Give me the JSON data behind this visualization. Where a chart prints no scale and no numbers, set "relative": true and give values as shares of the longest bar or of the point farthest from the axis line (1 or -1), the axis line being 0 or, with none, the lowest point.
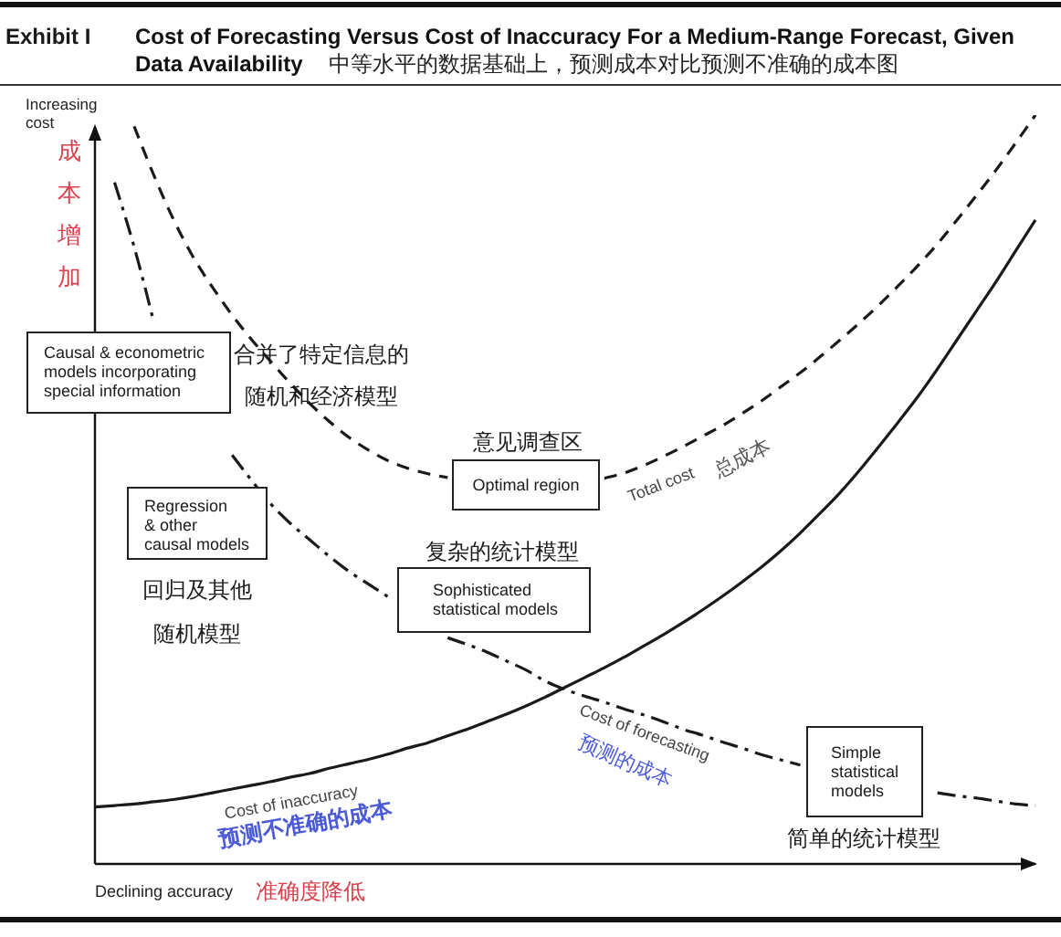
{
  "chart_data": {
    "type": "line",
    "title": "Cost of Forecasting Versus Cost of Inaccuracy For a Medium-Range Forecast, Given Data Availability",
    "subtitle": "中等水平的数据基础上，预测成本对比预测不准确的成本图",
    "xlabel": "Declining accuracy",
    "ylabel": "Increasing\ncost",
    "annotations": [
      "Exhibit I",
      "成本增加",
      "准确度降低",
      "Causal & econometric\nmodels incorporating\nspecial information",
      "合并了特定信息的",
      "随机和经济模型",
      "Regression\n& other\ncausal models",
      "回归及其他",
      "随机模型",
      "意见调查区",
      "Optimal region",
      "总成本",
      "复杂的统计模型",
      "Sophisticated\nstatistical models",
      "预测的成本",
      "Simple\nstatistical\nmodels",
      "简单的统计模型",
      "预测不准确的成本"
    ],
    "categories": [
      null,
      null,
      null,
      null,
      null,
      null,
      null,
      null,
      null,
      null,
      null,
      null,
      null,
      null,
      null,
      null,
      null,
      null,
      null,
      null,
      null,
      null,
      null,
      null,
      null,
      null,
      null,
      null,
      null,
      null,
      null,
      null,
      null,
      null,
      null,
      null,
      null,
      null,
      null,
      null,
      null,
      null,
      null,
      null,
      null,
      null,
      null,
      null,
      null
    ],
    "relative": true,
    "series": [
      {
        "name": "Cost of inaccuracy",
        "color": "#1a1a1a",
        "line_style": "solid",
        "values": [
          0.076,
          0.078,
          0.08,
          0.083,
          0.086,
          0.09,
          0.095,
          0.1,
          0.105,
          0.11,
          0.116,
          0.121,
          0.128,
          0.134,
          0.14,
          0.147,
          0.155,
          0.162,
          0.171,
          0.18,
          0.19,
          0.2,
          0.211,
          0.223,
          0.236,
          0.249,
          0.262,
          0.276,
          0.291,
          0.306,
          0.322,
          0.339,
          0.357,
          0.376,
          0.396,
          0.418,
          0.442,
          0.468,
          0.495,
          0.525,
          0.557,
          0.59,
          0.624,
          0.661,
          0.7,
          0.739,
          0.778,
          0.819,
          0.86
        ]
      },
      {
        "name": "Cost of forecasting",
        "color": "#1a1a1a",
        "line_style": "dashdot",
        "values": [
          null,
          0.91,
          0.824,
          0.724,
          null,
          null,
          null,
          0.546,
          0.512,
          0.48,
          0.454,
          0.432,
          0.41,
          0.39,
          0.373,
          0.356,
          null,
          null,
          0.302,
          0.293,
          0.283,
          0.271,
          0.259,
          0.244,
          0.233,
          0.224,
          0.216,
          0.207,
          0.199,
          0.19,
          0.18,
          0.172,
          0.163,
          0.155,
          0.146,
          0.139,
          0.132,
          null,
          null,
          null,
          null,
          null,
          null,
          0.095,
          0.091,
          0.088,
          0.084,
          0.08,
          0.078
        ]
      },
      {
        "name": "Total cost",
        "color": "#1a1a1a",
        "line_style": "dashed",
        "values": [
          null,
          null,
          0.985,
          0.92,
          0.861,
          0.811,
          0.77,
          0.733,
          0.7,
          0.67,
          0.641,
          0.614,
          0.59,
          0.569,
          0.552,
          0.538,
          0.528,
          0.521,
          0.516,
          null,
          null,
          null,
          null,
          null,
          null,
          null,
          0.515,
          0.522,
          0.532,
          0.544,
          0.557,
          0.571,
          0.585,
          0.601,
          0.618,
          0.637,
          0.656,
          0.677,
          0.699,
          0.722,
          0.746,
          0.772,
          0.799,
          0.828,
          0.86,
          0.893,
          0.927,
          0.963,
          1
        ]
      }
    ]
  }
}
